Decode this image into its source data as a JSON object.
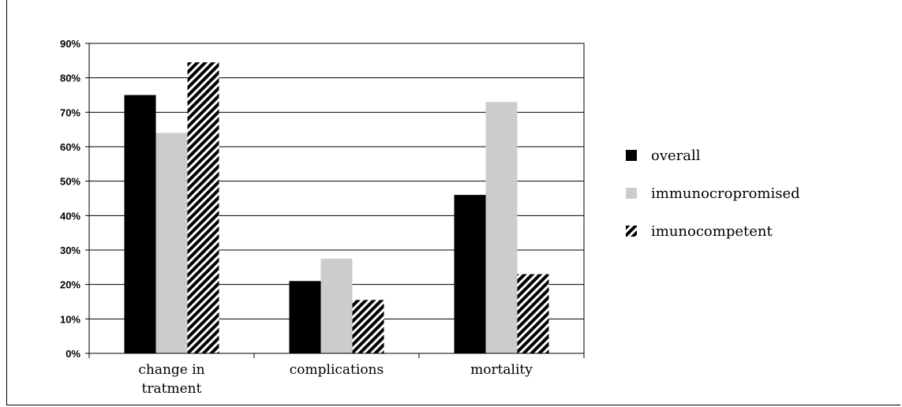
{
  "chart_data": {
    "type": "bar",
    "categories": [
      [
        "change in",
        "tratment"
      ],
      [
        "complications"
      ],
      [
        "mortality"
      ]
    ],
    "series": [
      {
        "name": "overall",
        "values": [
          75,
          21,
          46
        ],
        "color": "#000000",
        "pattern": "solid"
      },
      {
        "name": "immunocropromised",
        "values": [
          64,
          27.5,
          73
        ],
        "color": "#cccccc",
        "pattern": "solid"
      },
      {
        "name": "imunocompetent",
        "values": [
          84.5,
          15.5,
          23
        ],
        "color": "#000000",
        "pattern": "diagonal-stripes"
      }
    ],
    "yticks": [
      "0%",
      "10%",
      "20%",
      "30%",
      "40%",
      "50%",
      "60%",
      "70%",
      "80%",
      "90%"
    ],
    "ylim": [
      0,
      90
    ],
    "grid": true,
    "legend": "right",
    "title": "",
    "xlabel": "",
    "ylabel": ""
  }
}
